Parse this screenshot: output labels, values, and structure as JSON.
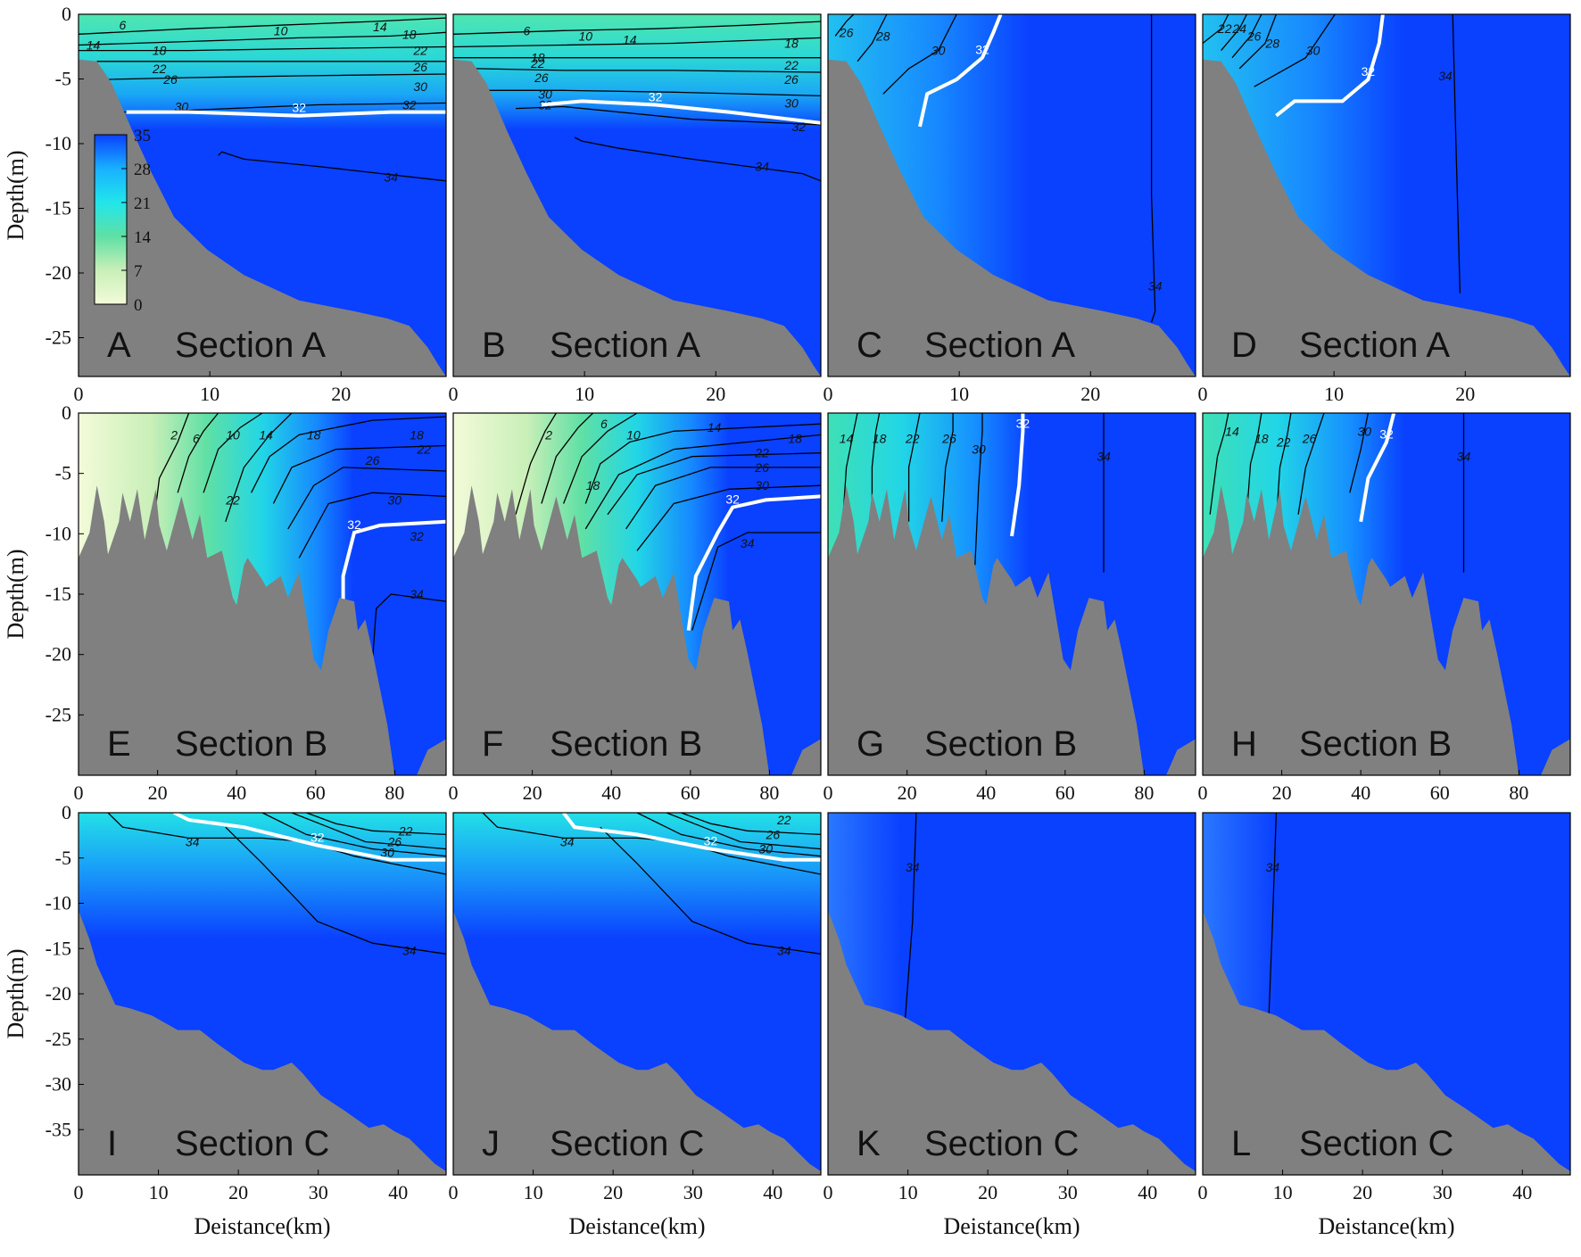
{
  "figure": {
    "y_axis_label": "Depth(m)",
    "x_axis_label": "Deistance(km)"
  },
  "colorbar": {
    "ticks": [
      "35",
      "28",
      "21",
      "14",
      "7",
      "0"
    ],
    "range": [
      0,
      35
    ],
    "colors": {
      "high": "#0a40ff",
      "mid_high": "#19b0ff",
      "mid": "#22e6ea",
      "mid_low": "#5fe0a5",
      "low": "#f3fbd9"
    }
  },
  "colors": {
    "seabed": "#808080",
    "water": "#0a40ff",
    "isohaline_32": "#ffffff",
    "contour": "#000000"
  },
  "chart_data": [
    {
      "type": "heatmap",
      "letter": "A",
      "section": "Section A",
      "xlim": [
        0,
        28
      ],
      "ylim": [
        -28,
        0
      ],
      "xticks": [
        "0",
        "10",
        "20"
      ],
      "yticks": [
        "0",
        "-5",
        "-10",
        "-15",
        "-20",
        "-25"
      ],
      "contour_labels": [
        "6",
        "10",
        "14",
        "14",
        "18",
        "18",
        "22",
        "22",
        "26",
        "26",
        "30",
        "30",
        "32",
        "34"
      ]
    },
    {
      "type": "heatmap",
      "letter": "B",
      "section": "Section A",
      "xlim": [
        0,
        28
      ],
      "ylim": [
        -28,
        0
      ],
      "xticks": [
        "0",
        "10",
        "20"
      ],
      "yticks": [],
      "contour_labels": [
        "6",
        "10",
        "14",
        "18",
        "18",
        "22",
        "22",
        "26",
        "26",
        "30",
        "30",
        "32",
        "32",
        "34"
      ]
    },
    {
      "type": "heatmap",
      "letter": "C",
      "section": "Section A",
      "xlim": [
        0,
        28
      ],
      "ylim": [
        -28,
        0
      ],
      "xticks": [
        "0",
        "10",
        "20"
      ],
      "yticks": [],
      "contour_labels": [
        "26",
        "28",
        "30",
        "32",
        "34"
      ]
    },
    {
      "type": "heatmap",
      "letter": "D",
      "section": "Section A",
      "xlim": [
        0,
        28
      ],
      "ylim": [
        -28,
        0
      ],
      "xticks": [
        "0",
        "10",
        "20"
      ],
      "yticks": [],
      "contour_labels": [
        "22",
        "24",
        "26",
        "28",
        "30",
        "32",
        "34"
      ]
    },
    {
      "type": "heatmap",
      "letter": "E",
      "section": "Section B",
      "xlim": [
        0,
        93
      ],
      "ylim": [
        -30,
        0
      ],
      "xticks": [
        "0",
        "20",
        "40",
        "60",
        "80"
      ],
      "yticks": [
        "0",
        "-5",
        "-10",
        "-15",
        "-20",
        "-25"
      ],
      "contour_labels": [
        "2",
        "6",
        "10",
        "14",
        "18",
        "18",
        "22",
        "26",
        "22",
        "30",
        "32",
        "32",
        "34"
      ]
    },
    {
      "type": "heatmap",
      "letter": "F",
      "section": "Section B",
      "xlim": [
        0,
        93
      ],
      "ylim": [
        -30,
        0
      ],
      "xticks": [
        "0",
        "20",
        "40",
        "60",
        "80"
      ],
      "yticks": [],
      "contour_labels": [
        "2",
        "6",
        "10",
        "14",
        "18",
        "18",
        "22",
        "26",
        "30",
        "32",
        "34"
      ]
    },
    {
      "type": "heatmap",
      "letter": "G",
      "section": "Section B",
      "xlim": [
        0,
        93
      ],
      "ylim": [
        -30,
        0
      ],
      "xticks": [
        "0",
        "20",
        "40",
        "60",
        "80"
      ],
      "yticks": [],
      "contour_labels": [
        "14",
        "18",
        "22",
        "26",
        "30",
        "32",
        "34"
      ]
    },
    {
      "type": "heatmap",
      "letter": "H",
      "section": "Section B",
      "xlim": [
        0,
        93
      ],
      "ylim": [
        -30,
        0
      ],
      "xticks": [
        "0",
        "20",
        "40",
        "60",
        "80"
      ],
      "yticks": [],
      "contour_labels": [
        "14",
        "18",
        "22",
        "26",
        "30",
        "32",
        "34"
      ]
    },
    {
      "type": "heatmap",
      "letter": "I",
      "section": "Section C",
      "xlim": [
        0,
        46
      ],
      "ylim": [
        -40,
        0
      ],
      "xticks": [
        "0",
        "10",
        "20",
        "30",
        "40"
      ],
      "yticks": [
        "0",
        "-5",
        "-10",
        "-15",
        "-20",
        "-25",
        "-30",
        "-35"
      ],
      "contour_labels": [
        "22",
        "26",
        "30",
        "32",
        "34",
        "34"
      ]
    },
    {
      "type": "heatmap",
      "letter": "J",
      "section": "Section C",
      "xlim": [
        0,
        46
      ],
      "ylim": [
        -40,
        0
      ],
      "xticks": [
        "0",
        "10",
        "20",
        "30",
        "40"
      ],
      "yticks": [],
      "contour_labels": [
        "22",
        "26",
        "30",
        "32",
        "34",
        "34"
      ]
    },
    {
      "type": "heatmap",
      "letter": "K",
      "section": "Section C",
      "xlim": [
        0,
        46
      ],
      "ylim": [
        -40,
        0
      ],
      "xticks": [
        "0",
        "10",
        "20",
        "30",
        "40"
      ],
      "yticks": [],
      "contour_labels": [
        "34"
      ]
    },
    {
      "type": "heatmap",
      "letter": "L",
      "section": "Section C",
      "xlim": [
        0,
        46
      ],
      "ylim": [
        -40,
        0
      ],
      "xticks": [
        "0",
        "10",
        "20",
        "30",
        "40"
      ],
      "yticks": [],
      "contour_labels": [
        "34"
      ]
    }
  ]
}
